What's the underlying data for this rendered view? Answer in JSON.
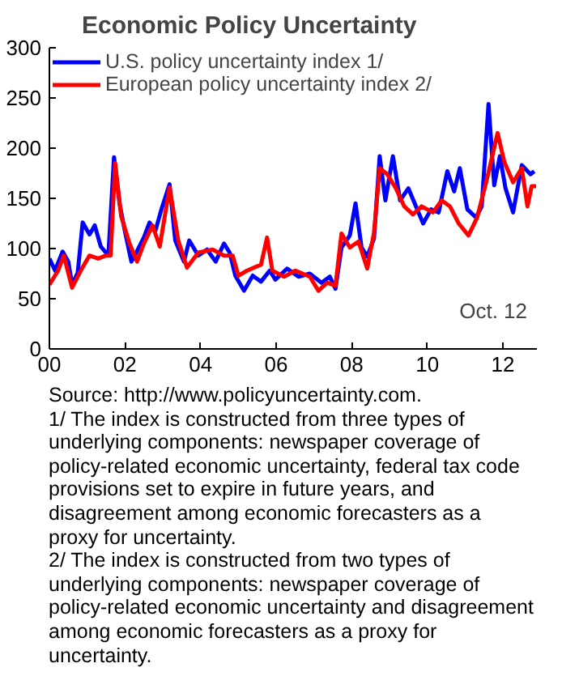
{
  "chart_data": {
    "type": "line",
    "title": "Economic Policy Uncertainty",
    "xlim": [
      2000,
      2012.9
    ],
    "ylim": [
      0,
      300
    ],
    "xticks": [
      {
        "value": 2000,
        "label": "00"
      },
      {
        "value": 2002,
        "label": "02"
      },
      {
        "value": 2004,
        "label": "04"
      },
      {
        "value": 2006,
        "label": "06"
      },
      {
        "value": 2008,
        "label": "08"
      },
      {
        "value": 2010,
        "label": "10"
      },
      {
        "value": 2012,
        "label": "12"
      }
    ],
    "yticks": [
      0,
      50,
      100,
      150,
      200,
      250,
      300
    ],
    "grid": false,
    "legend": "top left",
    "line_style": "solid",
    "series": [
      {
        "name": "U.S. policy uncertainty index 1/",
        "color": "#0000ff",
        "x": [
          2000.0,
          2000.15,
          2000.35,
          2000.5,
          2000.6,
          2000.75,
          2000.88,
          2001.06,
          2001.2,
          2001.36,
          2001.56,
          2001.71,
          2001.86,
          2002.0,
          2002.17,
          2002.3,
          2002.5,
          2002.65,
          2002.8,
          2002.98,
          2003.18,
          2003.33,
          2003.56,
          2003.7,
          2003.94,
          2004.17,
          2004.4,
          2004.62,
          2004.77,
          2004.92,
          2005.15,
          2005.38,
          2005.6,
          2005.83,
          2005.98,
          2006.29,
          2006.59,
          2006.89,
          2007.2,
          2007.42,
          2007.57,
          2007.73,
          2007.95,
          2008.1,
          2008.26,
          2008.41,
          2008.59,
          2008.74,
          2008.89,
          2009.09,
          2009.28,
          2009.5,
          2009.7,
          2009.89,
          2010.1,
          2010.3,
          2010.53,
          2010.71,
          2010.86,
          2011.06,
          2011.29,
          2011.44,
          2011.62,
          2011.77,
          2011.92,
          2012.07,
          2012.27,
          2012.5,
          2012.73,
          2012.83
        ],
        "values": [
          90,
          78,
          97,
          87,
          64,
          76,
          126,
          114,
          123,
          102,
          93,
          191,
          144,
          117,
          87,
          96,
          111,
          126,
          117,
          141,
          164,
          108,
          87,
          108,
          93,
          99,
          87,
          105,
          96,
          73,
          58,
          73,
          67,
          78,
          69,
          80,
          72,
          75,
          66,
          72,
          60,
          101,
          113,
          145,
          101,
          92,
          110,
          192,
          148,
          192,
          148,
          160,
          142,
          125,
          139,
          136,
          177,
          157,
          180,
          139,
          131,
          142,
          244,
          163,
          192,
          160,
          136,
          183,
          174,
          177
        ]
      },
      {
        "name": "European policy uncertainty index 2/",
        "color": "#ff0000",
        "x": [
          2000.0,
          2000.23,
          2000.38,
          2000.6,
          2000.83,
          2001.06,
          2001.29,
          2001.5,
          2001.62,
          2001.74,
          2001.9,
          2002.12,
          2002.32,
          2002.5,
          2002.73,
          2002.92,
          2003.18,
          2003.41,
          2003.64,
          2003.94,
          2004.32,
          2004.62,
          2004.85,
          2005.0,
          2005.23,
          2005.6,
          2005.76,
          2005.9,
          2006.21,
          2006.51,
          2006.89,
          2007.12,
          2007.35,
          2007.57,
          2007.73,
          2007.95,
          2008.18,
          2008.41,
          2008.59,
          2008.74,
          2008.94,
          2009.17,
          2009.39,
          2009.62,
          2009.85,
          2010.15,
          2010.38,
          2010.6,
          2010.83,
          2011.09,
          2011.32,
          2011.59,
          2011.86,
          2012.04,
          2012.27,
          2012.5,
          2012.65,
          2012.76,
          2012.88
        ],
        "values": [
          64,
          78,
          93,
          61,
          78,
          93,
          90,
          93,
          93,
          185,
          132,
          105,
          87,
          105,
          123,
          102,
          161,
          108,
          81,
          96,
          99,
          93,
          93,
          73,
          78,
          84,
          111,
          78,
          72,
          78,
          72,
          58,
          66,
          63,
          115,
          101,
          107,
          80,
          116,
          180,
          174,
          160,
          142,
          134,
          142,
          136,
          148,
          142,
          125,
          113,
          131,
          171,
          215,
          186,
          166,
          180,
          142,
          162,
          162
        ]
      }
    ],
    "annotations": [
      "Oct. 12",
      "Source: http://www.policyuncertainty.com.",
      "1/ The index is constructed from three types of underlying components: newspaper coverage of policy-related economic uncertainty, federal tax code provisions set to expire in future years, and disagreement among economic forecasters as a proxy for uncertainty.",
      "2/ The index is constructed from two types of underlying components: newspaper coverage of policy-related economic uncertainty and disagreement among economic forecasters as a proxy for uncertainty."
    ]
  }
}
